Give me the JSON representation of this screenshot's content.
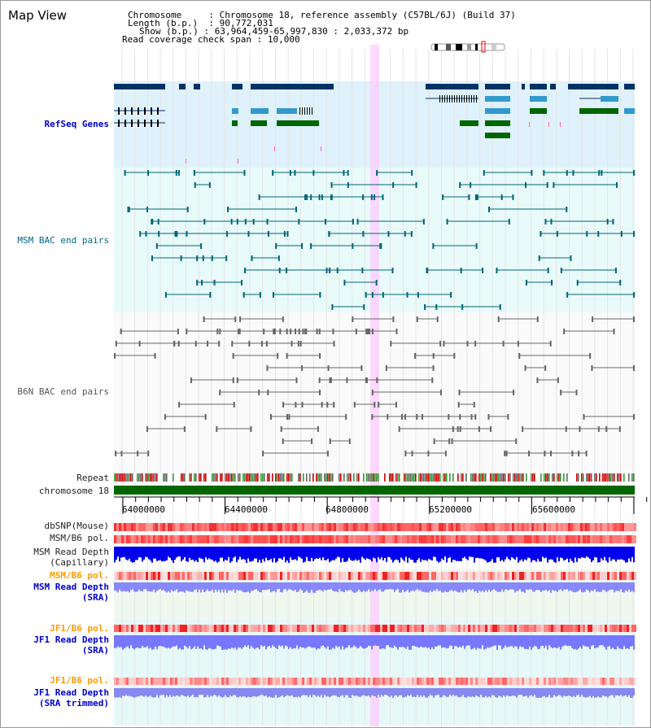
{
  "title": "Map View",
  "info": {
    "chromosome_label": "Chromosome",
    "chromosome_value": "Chromosome 18, reference assembly (C57BL/6J) (Build 37)",
    "length_label": "Length (b.p.)",
    "length_value": "90,772,031",
    "show_label": "Show (b.p.)",
    "show_value": "63,964,459-65,997,830 : 2,033,372 bp",
    "coverage_label": "Read coverage check span",
    "coverage_value": "10,000"
  },
  "tracks": {
    "refseq": "RefSeq Genes",
    "msm_bac": "MSM BAC end pairs",
    "b6n_bac": "B6N BAC end pairs",
    "repeat": "Repeat",
    "chromosome": "chromosome 18",
    "dbsnp": "dbSNP(Mouse)",
    "msm_b6_pol_1": "MSM/B6 pol.",
    "msm_depth_cap_1": "MSM Read Depth",
    "msm_depth_cap_2": "(Capillary)",
    "msm_b6_pol_2": "MSM/B6 pol.",
    "msm_depth_sra_1": "MSM Read Depth",
    "msm_depth_sra_2": "(SRA)",
    "jf1_b6_pol_1": "JF1/B6 pol.",
    "jf1_depth_sra_1": "JF1 Read Depth",
    "jf1_depth_sra_2": "(SRA)",
    "jf1_b6_pol_2": "JF1/B6 pol.",
    "jf1_depth_trim_1": "JF1 Read Depth",
    "jf1_depth_trim_2": "(SRA trimmed)"
  },
  "axis": {
    "ticks": [
      "64000000",
      "64400000",
      "64800000",
      "65200000",
      "65600000"
    ]
  },
  "colors": {
    "refseq_dark": "#003366",
    "refseq_light": "#3399cc",
    "refseq_green": "#006600",
    "msm_line": "#006677",
    "b6n_line": "#666666",
    "chromosome": "#006600",
    "highlight": "#ffccff"
  }
}
